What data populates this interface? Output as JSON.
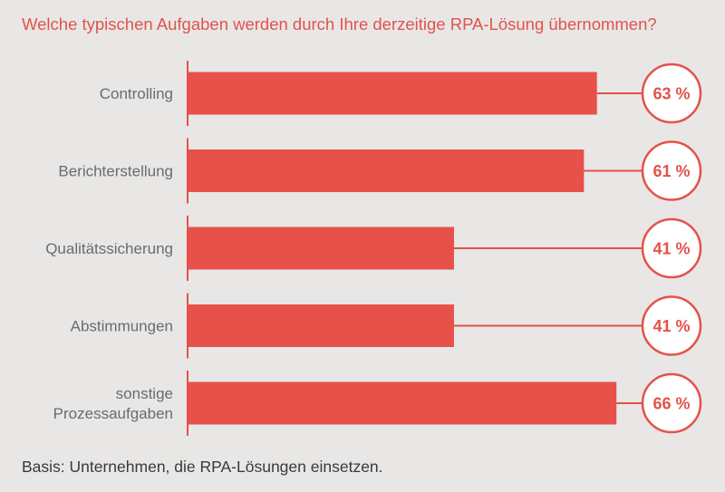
{
  "chart_data": {
    "type": "bar",
    "orientation": "horizontal",
    "title": "Welche typischen Aufgaben werden durch Ihre derzeitige RPA-Lösung übernommen?",
    "categories": [
      [
        "Controlling"
      ],
      [
        "Berichterstellung"
      ],
      [
        "Qualitätssicherung"
      ],
      [
        "Abstimmungen"
      ],
      [
        "sonstige",
        "Prozessaufgaben"
      ]
    ],
    "values": [
      63,
      61,
      41,
      41,
      66
    ],
    "value_labels": [
      "63 %",
      "61 %",
      "41 %",
      "41 %",
      "66 %"
    ],
    "xlim": [
      0,
      100
    ],
    "grid": false,
    "legend": "none",
    "colors": {
      "bar": "#e8514a",
      "text_accent": "#e4524a",
      "axis": "#e4524a"
    }
  },
  "footnote": "Basis: Unternehmen, die RPA-Lösungen einsetzen."
}
